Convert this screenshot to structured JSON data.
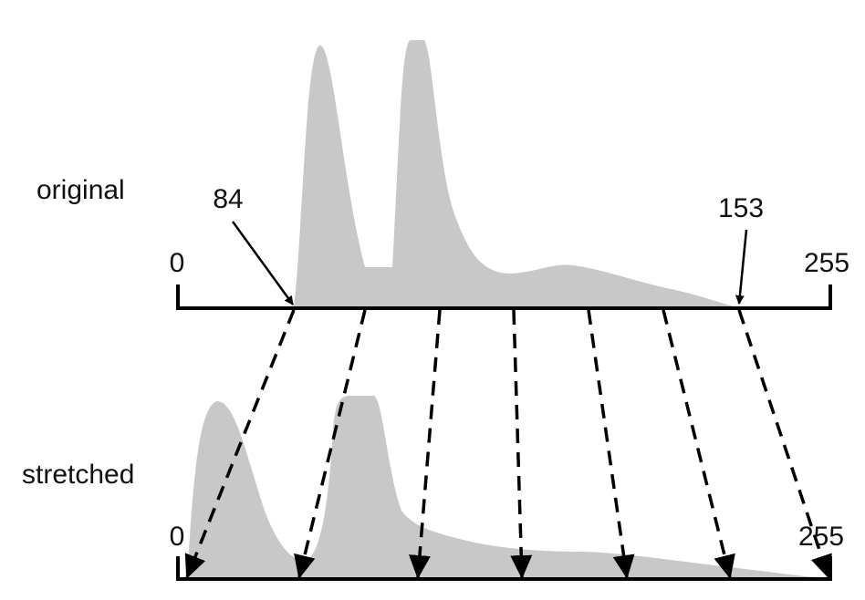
{
  "diagram": {
    "original": {
      "label": "original",
      "min": "0",
      "max": "255",
      "low": "84",
      "high": "153"
    },
    "stretched": {
      "label": "stretched",
      "min": "0",
      "max": "255"
    }
  }
}
